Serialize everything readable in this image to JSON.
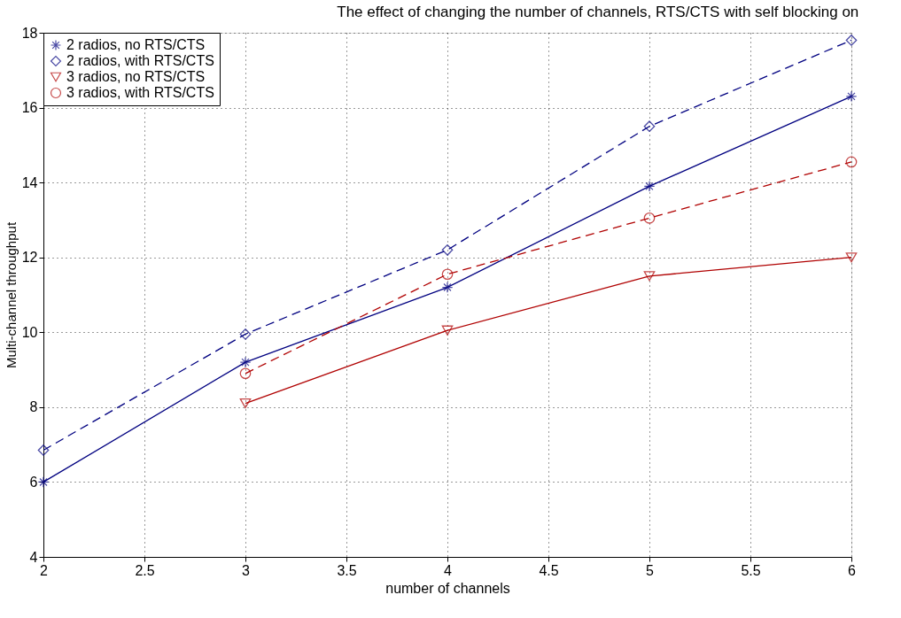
{
  "chart_data": {
    "type": "line",
    "title": "The effect of changing the number of channels, RTS/CTS with self blocking on",
    "xlabel": "number of channels",
    "ylabel": "Multi-channel throughput",
    "xlim": [
      2,
      6
    ],
    "xticks": [
      2,
      2.5,
      3,
      3.5,
      4,
      4.5,
      5,
      5.5,
      6
    ],
    "ylim": [
      4,
      18
    ],
    "yticks": [
      4,
      6,
      8,
      10,
      12,
      14,
      16,
      18
    ],
    "grid": true,
    "legend": "top left",
    "series": [
      {
        "name": "2 radios, no RTS/CTS",
        "color": "#000080",
        "marker": "cross",
        "line_style": "solid",
        "x": [
          2,
          3,
          4,
          5,
          6
        ],
        "values": [
          6.0,
          9.2,
          11.2,
          13.9,
          16.3
        ]
      },
      {
        "name": "2 radios, with RTS/CTS",
        "color": "#000080",
        "marker": "diamond",
        "line_style": "dashed",
        "x": [
          2,
          3,
          4,
          5,
          6
        ],
        "values": [
          6.85,
          9.95,
          12.2,
          15.5,
          17.8
        ]
      },
      {
        "name": "3 radios, no RTS/CTS",
        "color": "#b00000",
        "marker": "triangle-down",
        "line_style": "solid",
        "x": [
          3,
          4,
          5,
          6
        ],
        "values": [
          8.1,
          10.05,
          11.5,
          12.0
        ]
      },
      {
        "name": "3 radios, with RTS/CTS",
        "color": "#b00000",
        "marker": "circle",
        "line_style": "dashed",
        "x": [
          3,
          4,
          5,
          6
        ],
        "values": [
          8.9,
          11.55,
          13.05,
          14.55
        ]
      }
    ]
  }
}
